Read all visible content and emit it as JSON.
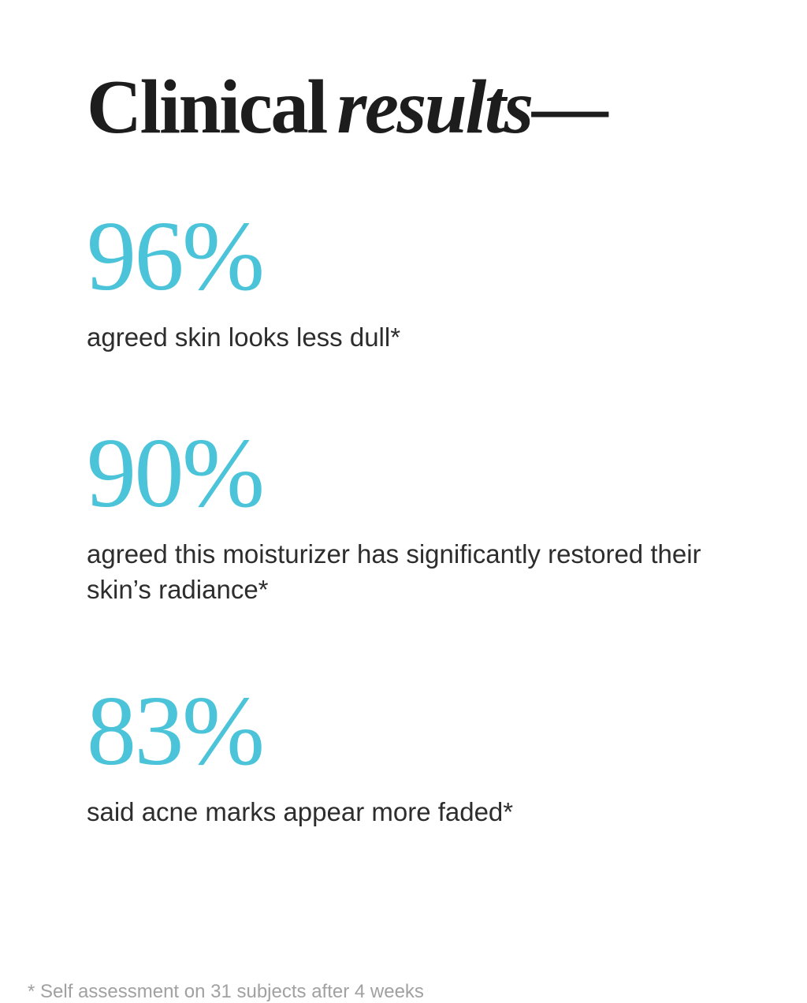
{
  "page": {
    "background_color": "#ffffff",
    "accent_color": "#4bc3d8",
    "title_color": "#1d1d1d",
    "label_color": "#2d2d2d",
    "muted_color": "#a1a1a1"
  },
  "title": {
    "regular": "Clinical",
    "italic": "results",
    "dash": "—"
  },
  "stats": [
    {
      "value": "96%",
      "label": "agreed skin looks less dull*"
    },
    {
      "value": "90%",
      "label": "agreed this moisturizer has significantly restored their skin’s radiance*"
    },
    {
      "value": "83%",
      "label": "said acne marks appear more faded*"
    }
  ],
  "footnote": "* Self assessment on 31 subjects after 4 weeks"
}
